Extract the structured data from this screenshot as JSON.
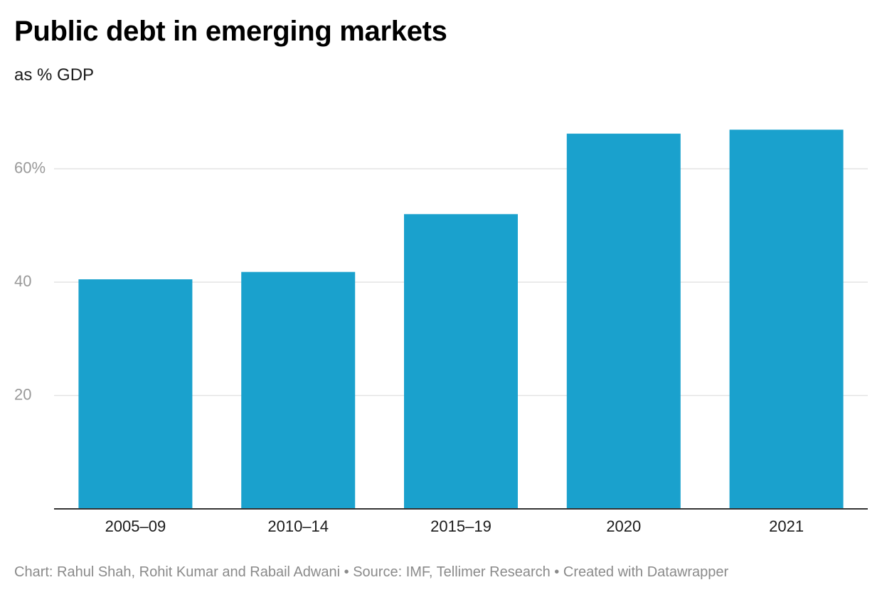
{
  "header": {
    "title": "Public debt in emerging markets",
    "subtitle": "as % GDP"
  },
  "footer": {
    "credit_label": "Chart:",
    "credit": "Rahul Shah, Rohit Kumar and Rabail Adwani",
    "separator1": "•",
    "source_label": "Source:",
    "source": "IMF, Tellimer Research",
    "separator2": "•",
    "created_with": "Created with Datawrapper"
  },
  "colors": {
    "bar": "#1aa1cd",
    "grid": "#e3e3e3",
    "baseline": "#333333"
  },
  "chart_data": {
    "type": "bar",
    "categories": [
      "2005–09",
      "2010–14",
      "2015–19",
      "2020",
      "2021"
    ],
    "values": [
      40.5,
      41.8,
      52.0,
      66.2,
      66.9
    ],
    "ylim": [
      0,
      70
    ],
    "yticks": [
      20,
      40,
      60
    ],
    "ytick_labels": [
      "20",
      "40",
      "60%"
    ],
    "title": "Public debt in emerging markets",
    "subtitle": "as % GDP",
    "xlabel": "",
    "ylabel": "",
    "grid": true,
    "legend": "none"
  }
}
